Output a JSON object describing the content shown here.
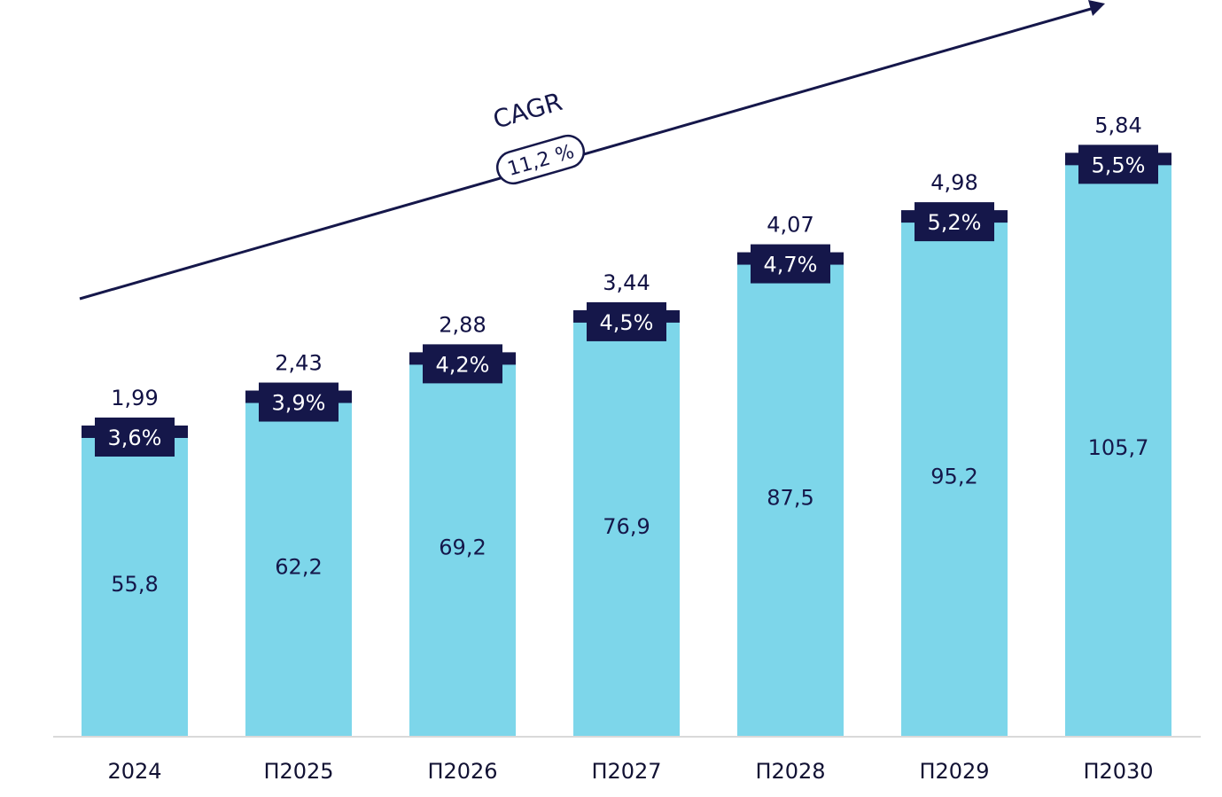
{
  "chart_data": {
    "type": "bar",
    "title": "",
    "xlabel": "",
    "ylabel": "",
    "ylim": [
      0,
      120
    ],
    "categories": [
      "2024",
      "П2025",
      "П2026",
      "П2027",
      "П2028",
      "П2029",
      "П2030"
    ],
    "series": [
      {
        "name": "value",
        "values": [
          "55,8",
          "62,2",
          "69,2",
          "76,9",
          "87,5",
          "95,2",
          "105,7"
        ],
        "numeric": [
          55.8,
          62.2,
          69.2,
          76.9,
          87.5,
          95.2,
          105.7
        ]
      }
    ],
    "top_values": [
      "1,99",
      "2,43",
      "2,88",
      "3,44",
      "4,07",
      "4,98",
      "5,84"
    ],
    "share_badges": [
      "3,6%",
      "3,9%",
      "4,2%",
      "4,5%",
      "4,7%",
      "5,2%",
      "5,5%"
    ],
    "cagr": {
      "title": "CAGR",
      "value": "11,2 %"
    },
    "colors": {
      "bar": "#7dd6ea",
      "badge": "#15174a",
      "arrow": "#15174a",
      "axis": "#d9d9d9",
      "text": "#15174a"
    },
    "grid": false,
    "legend": "none"
  }
}
